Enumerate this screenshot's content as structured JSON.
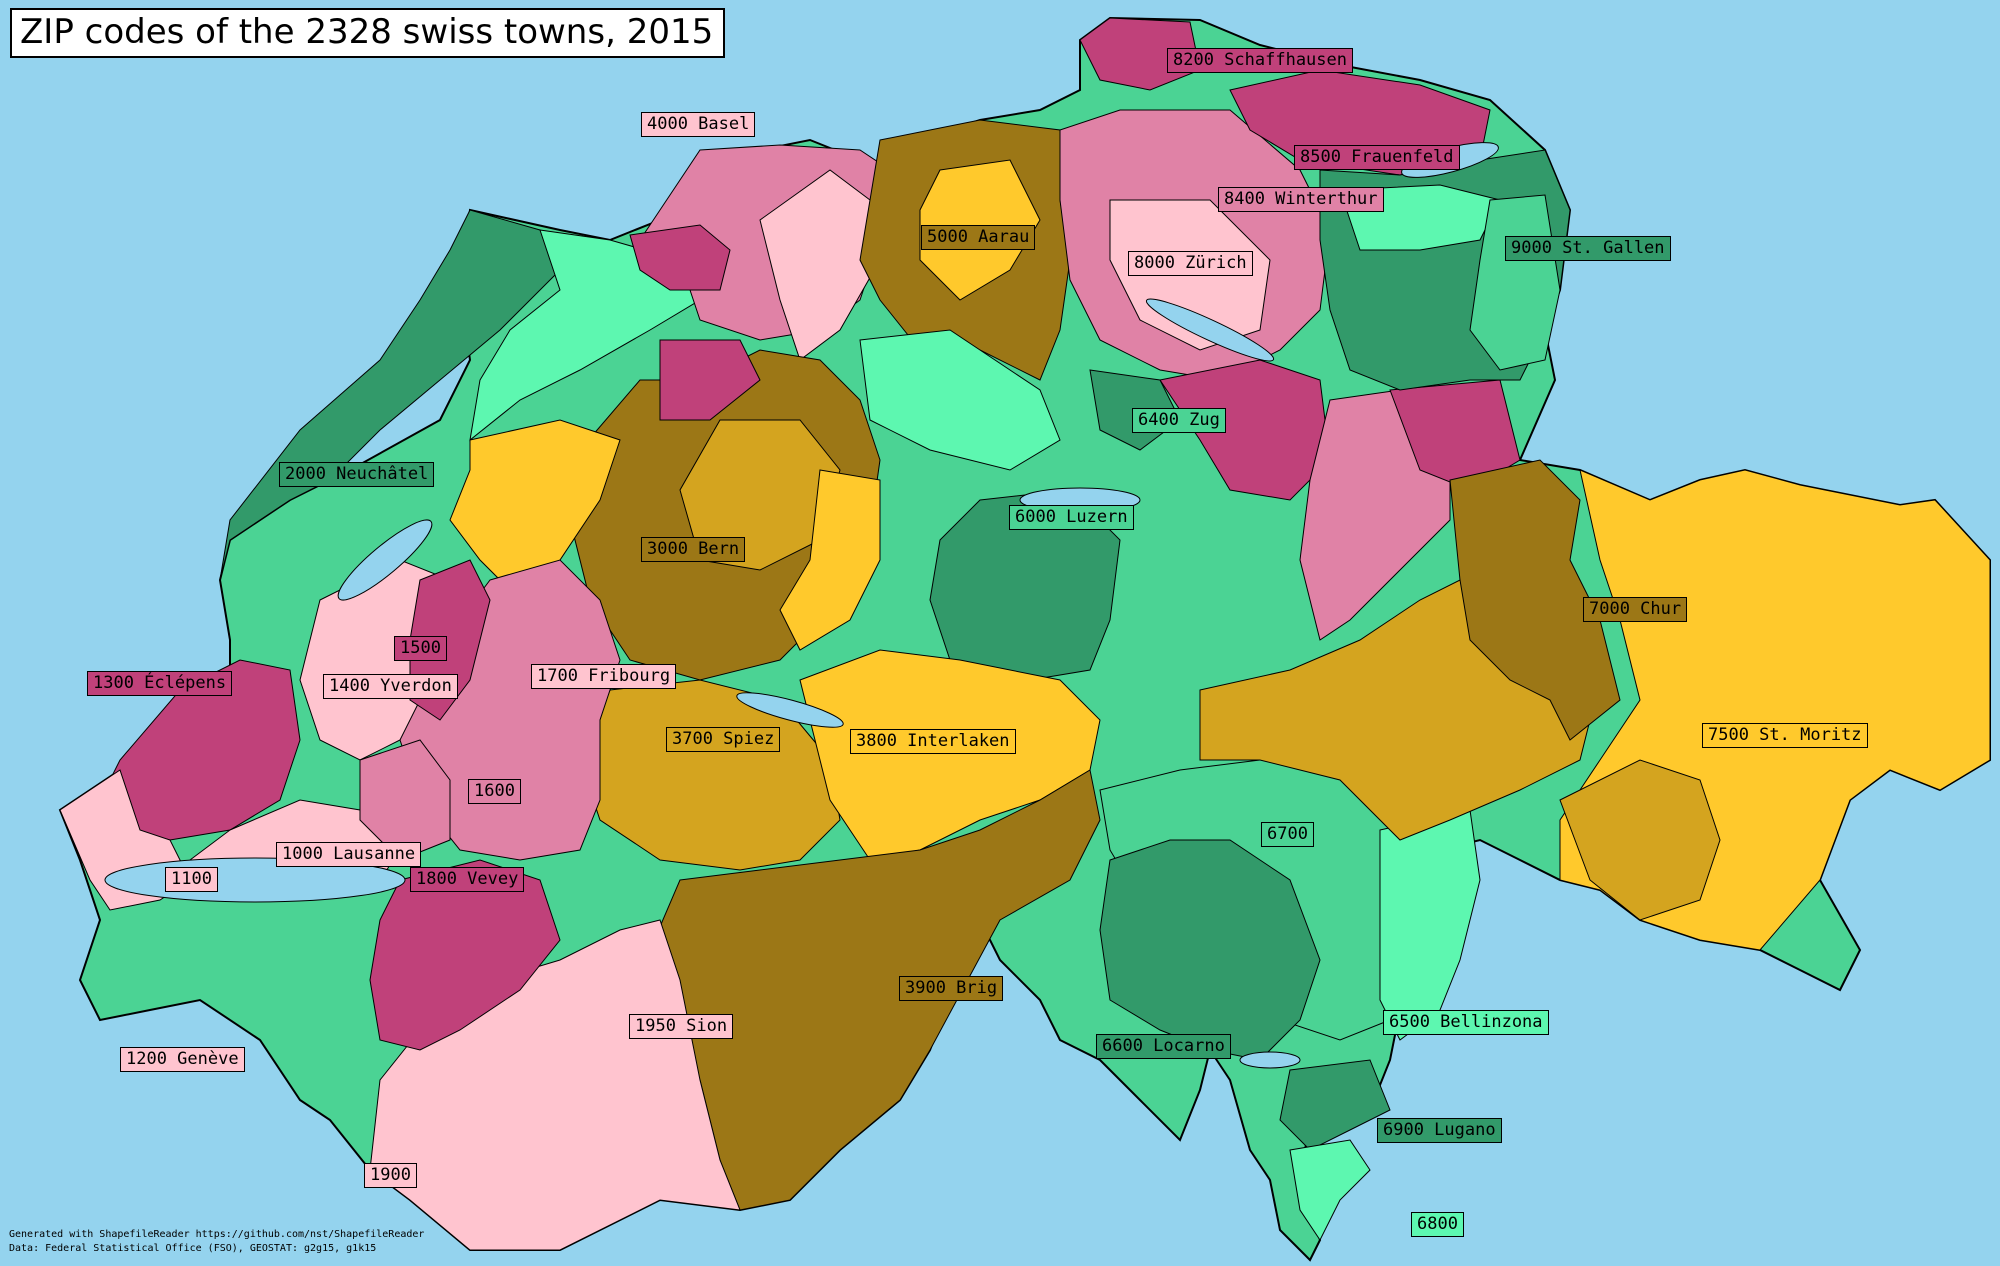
{
  "title": "ZIP codes of the 2328 swiss towns, 2015",
  "colors": {
    "lake_background": "#94d3ee",
    "light_pink": "#ffc4cf",
    "mid_pink": "#e082a6",
    "dark_pink": "#c0417a",
    "light_green": "#5df7b0",
    "mid_green": "#4bd394",
    "dark_green": "#329a6a",
    "yellow": "#ffc92c",
    "dark_yellow": "#d4a41f",
    "brown": "#9c7716"
  },
  "labels": [
    {
      "text": "8200 Schaffhausen",
      "color": "#c0417a"
    },
    {
      "text": "4000 Basel",
      "color": "#ffc4cf"
    },
    {
      "text": "8500 Frauenfeld",
      "color": "#c0417a"
    },
    {
      "text": "8400 Winterthur",
      "color": "#e082a6"
    },
    {
      "text": "5000 Aarau",
      "color": "#9c7716"
    },
    {
      "text": "9000 St. Gallen",
      "color": "#329a6a"
    },
    {
      "text": "8000 Zürich",
      "color": "#ffc4cf"
    },
    {
      "text": "6400 Zug",
      "color": "#4bd394"
    },
    {
      "text": "2000 Neuchâtel",
      "color": "#329a6a"
    },
    {
      "text": "6000 Luzern",
      "color": "#4bd394"
    },
    {
      "text": "3000 Bern",
      "color": "#9c7716"
    },
    {
      "text": "7000 Chur",
      "color": "#9c7716"
    },
    {
      "text": "1500",
      "color": "#c0417a"
    },
    {
      "text": "1300 Éclépens",
      "color": "#c0417a"
    },
    {
      "text": "1400 Yverdon",
      "color": "#ffc4cf"
    },
    {
      "text": "1700 Fribourg",
      "color": "#ffc4cf"
    },
    {
      "text": "3700 Spiez",
      "color": "#d4a41f"
    },
    {
      "text": "3800 Interlaken",
      "color": "#ffc92c"
    },
    {
      "text": "7500 St. Moritz",
      "color": "#ffc92c"
    },
    {
      "text": "1600",
      "color": "#e082a6"
    },
    {
      "text": "6700",
      "color": "#4bd394"
    },
    {
      "text": "1000 Lausanne",
      "color": "#ffc4cf"
    },
    {
      "text": "1100",
      "color": "#ffc4cf"
    },
    {
      "text": "1800 Vevey",
      "color": "#c0417a"
    },
    {
      "text": "3900 Brig",
      "color": "#9c7716"
    },
    {
      "text": "1950 Sion",
      "color": "#ffc4cf"
    },
    {
      "text": "6500 Bellinzona",
      "color": "#5df7b0"
    },
    {
      "text": "6600 Locarno",
      "color": "#329a6a"
    },
    {
      "text": "1200 Genève",
      "color": "#ffc4cf"
    },
    {
      "text": "6900 Lugano",
      "color": "#329a6a"
    },
    {
      "text": "1900",
      "color": "#ffc4cf"
    },
    {
      "text": "6800",
      "color": "#5df7b0"
    }
  ],
  "footer": {
    "line1": "Generated with ShapefileReader https://github.com/nst/ShapefileReader",
    "line2": "Data: Federal Statistical Office (FSO), GEOSTAT: g2g15, g1k15"
  }
}
